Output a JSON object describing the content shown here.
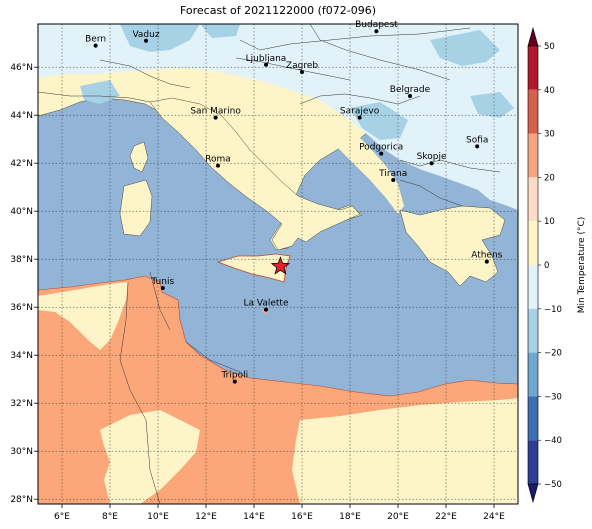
{
  "title": "Forecast of 2021122000 (f072-096)",
  "map": {
    "lon_range": [
      5,
      25
    ],
    "lat_range": [
      27.8,
      47.8
    ],
    "lon_ticks": [
      "6°E",
      "8°E",
      "10°E",
      "12°E",
      "14°E",
      "16°E",
      "18°E",
      "20°E",
      "22°E",
      "24°E"
    ],
    "lat_ticks": [
      "28°N",
      "30°N",
      "32°N",
      "34°N",
      "36°N",
      "38°N",
      "40°N",
      "42°N",
      "44°N",
      "46°N"
    ],
    "grid": true,
    "colors": {
      "sea": "#92b4d6",
      "land_warm": "#fdf5c8",
      "land_hot": "#fba77a",
      "land_cold": "#e1f2f8",
      "land_very_cold": "#a7d2e6",
      "marker": "#e8202a"
    }
  },
  "cities": [
    {
      "name": "Bern",
      "lon": 7.4,
      "lat": 46.9
    },
    {
      "name": "Vaduz",
      "lon": 9.5,
      "lat": 47.1
    },
    {
      "name": "Budapest",
      "lon": 19.1,
      "lat": 47.5
    },
    {
      "name": "Ljubljana",
      "lon": 14.5,
      "lat": 46.1
    },
    {
      "name": "Zagreb",
      "lon": 16.0,
      "lat": 45.8
    },
    {
      "name": "Belgrade",
      "lon": 20.5,
      "lat": 44.8
    },
    {
      "name": "San Marino",
      "lon": 12.4,
      "lat": 43.9
    },
    {
      "name": "Sarajevo",
      "lon": 18.4,
      "lat": 43.9
    },
    {
      "name": "Sofia",
      "lon": 23.3,
      "lat": 42.7
    },
    {
      "name": "Podgorica",
      "lon": 19.3,
      "lat": 42.4
    },
    {
      "name": "Skopje",
      "lon": 21.4,
      "lat": 42.0
    },
    {
      "name": "Roma",
      "lon": 12.5,
      "lat": 41.9
    },
    {
      "name": "Tirana",
      "lon": 19.8,
      "lat": 41.3
    },
    {
      "name": "Athens",
      "lon": 23.7,
      "lat": 37.9
    },
    {
      "name": "Tunis",
      "lon": 10.2,
      "lat": 36.8
    },
    {
      "name": "La Valette",
      "lon": 14.5,
      "lat": 35.9
    },
    {
      "name": "Tripoli",
      "lon": 13.2,
      "lat": 32.9
    }
  ],
  "marker": {
    "lon": 15.1,
    "lat": 37.7
  },
  "colorbar": {
    "label": "Min Temperature (°C)",
    "ticks": [
      "50",
      "40",
      "30",
      "20",
      "10",
      "0",
      "−10",
      "−20",
      "−30",
      "−40",
      "−50"
    ],
    "colors": [
      "#67001f",
      "#b2182b",
      "#d6604d",
      "#f4a582",
      "#fddbc7",
      "#fdf5c8",
      "#e1f2f8",
      "#a7d2e6",
      "#6fa7d1",
      "#3d6fb0",
      "#2c3f95",
      "#1a1a6e"
    ]
  }
}
